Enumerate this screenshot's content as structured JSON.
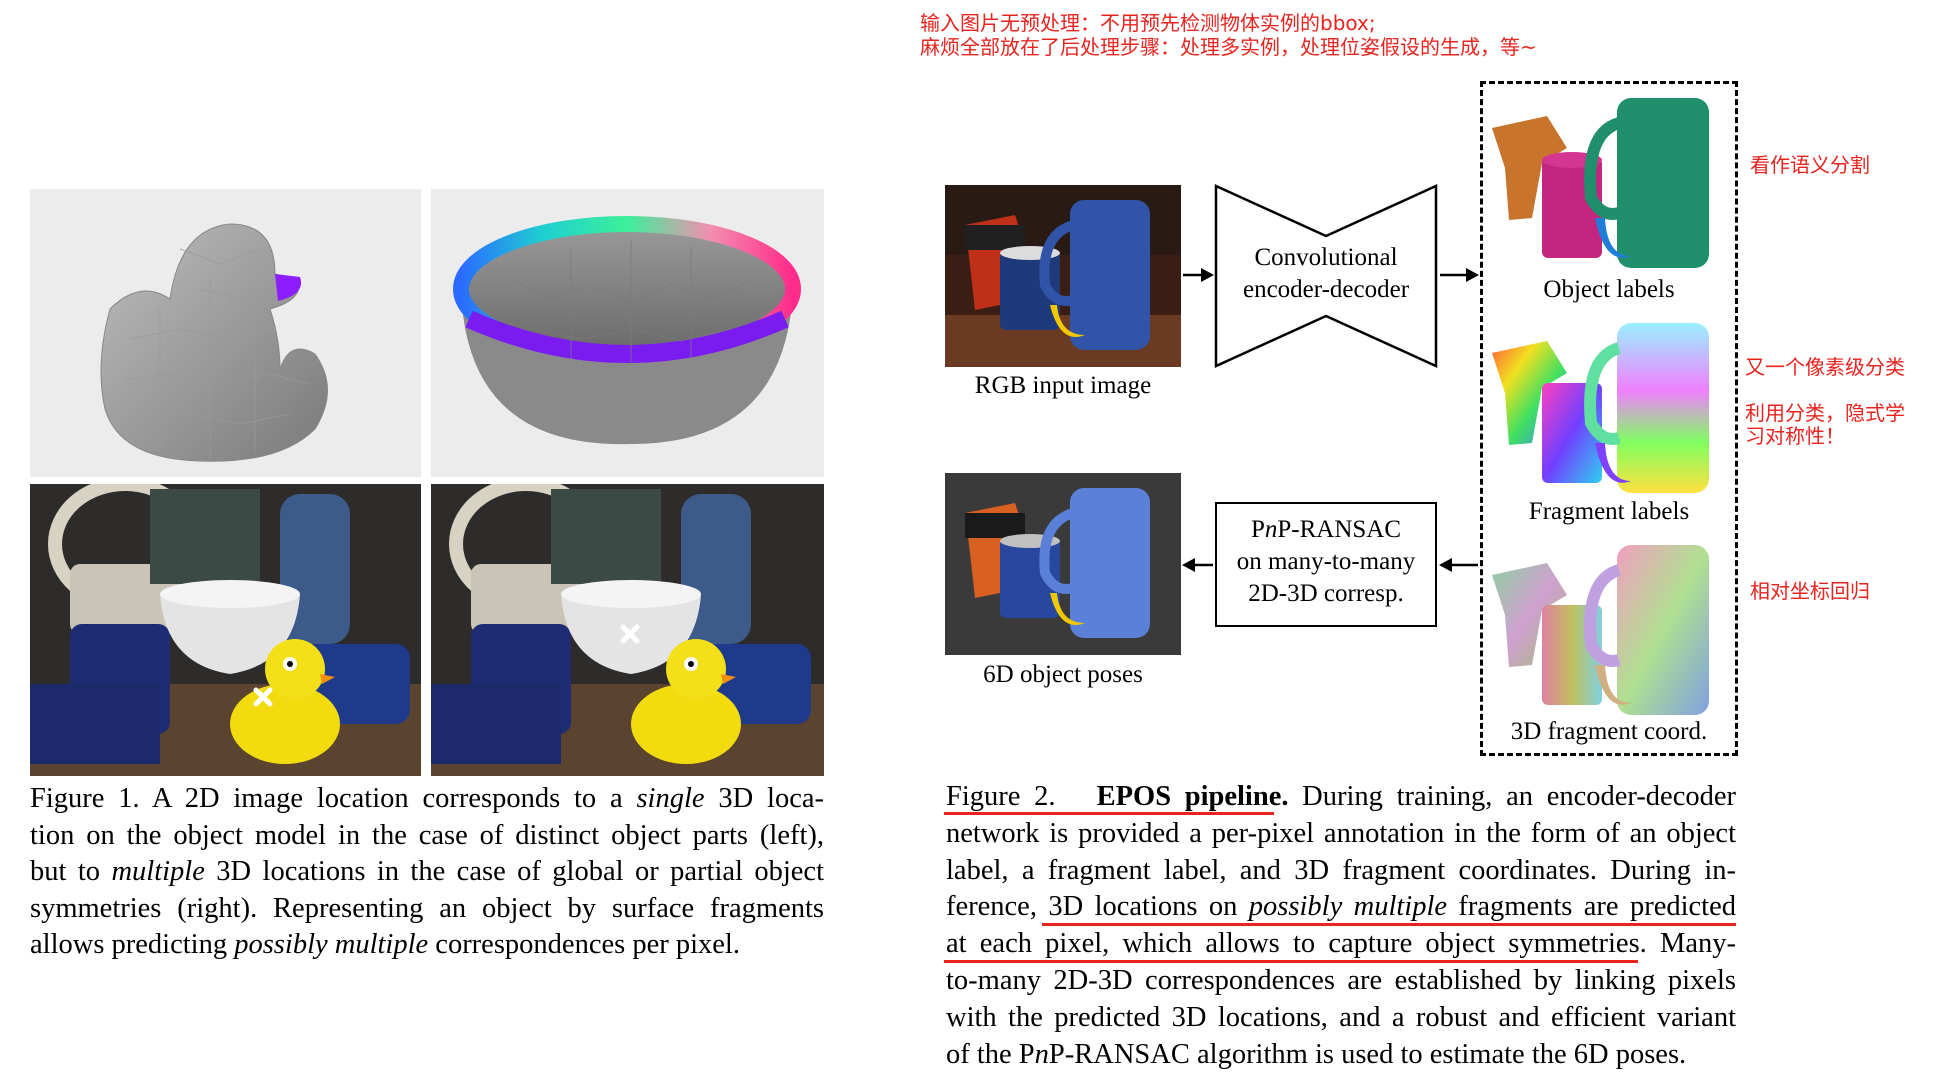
{
  "annotations": {
    "top_line1": "输入图片无预处理：不用预先检测物体实例的bbox;",
    "top_line2": "麻烦全部放在了后处理步骤：处理多实例，处理位姿假设的生成，等~",
    "semantic": "看作语义分割",
    "pixel_class": "又一个像素级分类",
    "symmetry_line1": "利用分类，隐式学",
    "symmetry_line2": "习对称性！",
    "regression": "相对坐标回归"
  },
  "figure1": {
    "caption": {
      "l1a": "Figure 1.   A 2D image location corresponds to a ",
      "l1b": "single",
      "l1c": " 3D loca-",
      "l2": "tion on the object model in the case of distinct object parts (left),",
      "l3a": "but to ",
      "l3b": "multiple",
      "l3c": " 3D locations in the case of global or partial object",
      "l4": "symmetries (right).  Representing an object by surface fragments",
      "l5a": "allows predicting ",
      "l5b": "possibly multiple",
      "l5c": " correspondences per pixel."
    }
  },
  "figure2": {
    "rgb_label": "RGB input image",
    "encoder_line1": "Convolutional",
    "encoder_line2": "encoder-decoder",
    "object_labels": "Object labels",
    "fragment_labels": "Fragment labels",
    "fragment_coords": "3D fragment coord.",
    "pnp_line1a": "P",
    "pnp_line1b": "n",
    "pnp_line1c": "P-RANSAC",
    "pnp_line2": "on many-to-many",
    "pnp_line3": "2D-3D corresp.",
    "poses_label": "6D object poses",
    "caption": {
      "l1a": "Figure 2.",
      "l1b": "EPOS pipeline.",
      "l1c": " During training, an encoder-decoder",
      "l2": "network is provided a per-pixel annotation in the form of an object",
      "l3": "label, a fragment label, and 3D fragment coordinates.  During in-",
      "l4a": "ference, ",
      "l4b": "3D locations on ",
      "l4c": "possibly multiple",
      "l4d": " fragments are predicted",
      "l5a": "at each pixel, which allows to capture object symmetries.",
      "l5b": " Many-",
      "l6": "to-many 2D-3D correspondences are established by linking pixels",
      "l7": "with the predicted 3D locations, and a robust and efficient variant",
      "l8a": "of the P",
      "l8b": "n",
      "l8c": "P-RANSAC algorithm is used to estimate the 6D poses."
    }
  }
}
